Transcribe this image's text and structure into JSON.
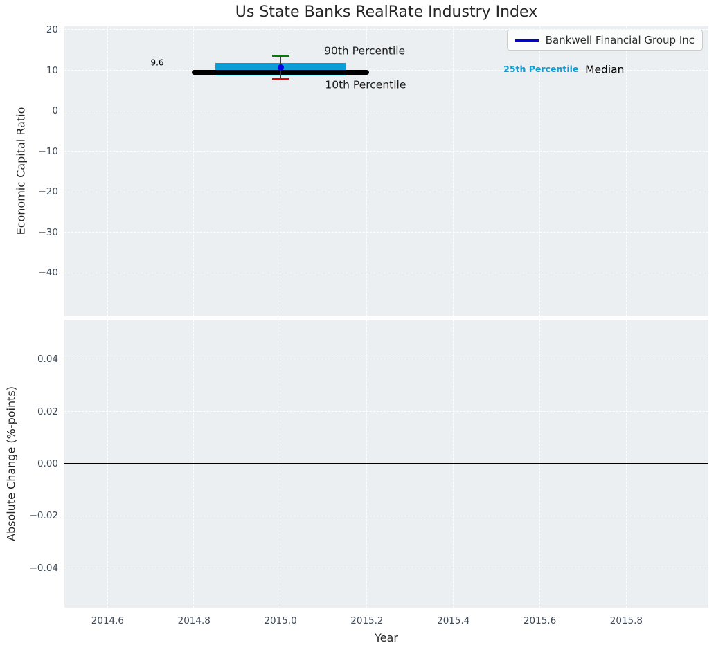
{
  "figure": {
    "title": "Us State Banks RealRate Industry Index",
    "background": "#ffffff",
    "plot_background": "#eceff1",
    "grid_color": "#ffffff",
    "tick_label_color": "#3d4a57",
    "text_color": "#262626",
    "legend": {
      "label": "Bankwell Financial Group Inc",
      "line_color": "#0000e6",
      "text_color": "#2b2b2b",
      "border_color": "#cccccc"
    }
  },
  "chart_data": [
    {
      "type": "line",
      "title": "Us State Banks RealRate Industry Index",
      "ylabel": "Economic Capital Ratio",
      "xlim": [
        2014.5,
        2015.99
      ],
      "ylim": [
        -50.7,
        20.9
      ],
      "grid": true,
      "legend_position": "upper right",
      "xticks": [
        2014.6,
        2014.8,
        2015.0,
        2015.2,
        2015.4,
        2015.6,
        2015.8
      ],
      "yticks": [
        20,
        10,
        0,
        -10,
        -20,
        -30,
        -40
      ],
      "ytick_labels": [
        "20",
        "10",
        "0",
        "−10",
        "−20",
        "−30",
        "−40"
      ],
      "series": [
        {
          "name": "25th-75th percentile band",
          "type": "band",
          "x": [
            2014.85,
            2015.15
          ],
          "y_low": 8.7,
          "y_high": 11.8,
          "color": "#0d9dd6"
        },
        {
          "name": "Median",
          "type": "line",
          "x": [
            2014.8,
            2015.2
          ],
          "y": 9.6,
          "color": "#000000",
          "linewidth": 7
        },
        {
          "name": "10th-90th percentile whisker",
          "type": "errorbar",
          "x": 2015.0,
          "y_low": 7.9,
          "y_high": 13.6,
          "cap_halfwidth": 0.02,
          "line_color": "#3a3a3a",
          "cap_low_color": "#eb0000",
          "cap_high_color": "#008000"
        },
        {
          "name": "Bankwell Financial Group Inc",
          "type": "scatter",
          "x": 2015.0,
          "y": 10.8,
          "color": "#0000e6",
          "marker_size": 9
        }
      ],
      "annotations": [
        {
          "id": "median-value",
          "text": "9.6",
          "x": 2014.73,
          "y": 11.8,
          "align": "right",
          "color": "#000000",
          "size": 12,
          "weight": "normal"
        },
        {
          "id": "p90-label",
          "text": "90th Percentile",
          "x": 2015.101,
          "y": 14.7,
          "align": "left",
          "color": "#1a1a1a",
          "size": 15.5,
          "weight": "normal"
        },
        {
          "id": "p10-label",
          "text": "10th Percentile",
          "x": 2015.103,
          "y": 6.3,
          "align": "left",
          "color": "#1a1a1a",
          "size": 15.5,
          "weight": "normal"
        },
        {
          "id": "p25-label",
          "text": "25th Percentile",
          "x": 2015.516,
          "y": 10.3,
          "align": "left",
          "color": "#0d9dd6",
          "size": 12.5,
          "weight": "bold"
        },
        {
          "id": "median-label",
          "text": "Median",
          "x": 2015.705,
          "y": 10.1,
          "align": "left",
          "color": "#000000",
          "size": 15.5,
          "weight": "normal"
        }
      ]
    },
    {
      "type": "line",
      "ylabel": "Absolute Change (%-points)",
      "xlabel": "Year",
      "xlim": [
        2014.5,
        2015.99
      ],
      "ylim": [
        -0.0551,
        0.0551
      ],
      "grid": true,
      "xticks": [
        2014.6,
        2014.8,
        2015.0,
        2015.2,
        2015.4,
        2015.6,
        2015.8
      ],
      "xtick_labels": [
        "2014.6",
        "2014.8",
        "2015.0",
        "2015.2",
        "2015.4",
        "2015.6",
        "2015.8"
      ],
      "yticks": [
        0.04,
        0.02,
        0.0,
        -0.02,
        -0.04
      ],
      "ytick_labels": [
        "0.04",
        "0.02",
        "0.00",
        "−0.02",
        "−0.04"
      ],
      "series": [
        {
          "name": "zero line",
          "type": "hline",
          "y": 0.0,
          "color": "#000000",
          "linewidth": 1.6
        }
      ]
    }
  ]
}
